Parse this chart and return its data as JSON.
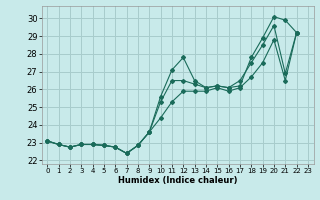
{
  "xlabel": "Humidex (Indice chaleur)",
  "background_color": "#c8eaea",
  "grid_color": "#a8cccc",
  "line_color": "#1a6b5a",
  "xlim": [
    -0.5,
    23.5
  ],
  "ylim": [
    21.8,
    30.7
  ],
  "yticks": [
    22,
    23,
    24,
    25,
    26,
    27,
    28,
    29,
    30
  ],
  "xticks": [
    0,
    1,
    2,
    3,
    4,
    5,
    6,
    7,
    8,
    9,
    10,
    11,
    12,
    13,
    14,
    15,
    16,
    17,
    18,
    19,
    20,
    21,
    22,
    23
  ],
  "xdata": [
    0,
    1,
    2,
    3,
    4,
    5,
    6,
    7,
    8,
    9,
    10,
    11,
    12,
    13,
    14,
    15,
    16,
    17,
    18,
    19,
    20,
    21,
    22
  ],
  "series1": [
    23.1,
    22.9,
    22.75,
    22.9,
    22.9,
    22.85,
    22.75,
    22.4,
    22.85,
    23.6,
    25.6,
    27.1,
    27.8,
    26.5,
    26.1,
    26.2,
    26.1,
    26.2,
    27.8,
    28.9,
    30.1,
    29.9,
    29.2
  ],
  "series2": [
    23.1,
    22.9,
    22.75,
    22.9,
    22.9,
    22.85,
    22.75,
    22.4,
    22.85,
    23.6,
    25.3,
    26.5,
    26.5,
    26.3,
    26.1,
    26.2,
    26.1,
    26.5,
    27.5,
    28.5,
    29.6,
    26.9,
    29.2
  ],
  "series3": [
    23.1,
    22.9,
    22.75,
    22.9,
    22.9,
    22.85,
    22.75,
    22.4,
    22.85,
    23.6,
    24.4,
    25.3,
    25.9,
    25.9,
    25.9,
    26.1,
    25.9,
    26.1,
    26.7,
    27.5,
    28.8,
    26.5,
    29.2
  ]
}
